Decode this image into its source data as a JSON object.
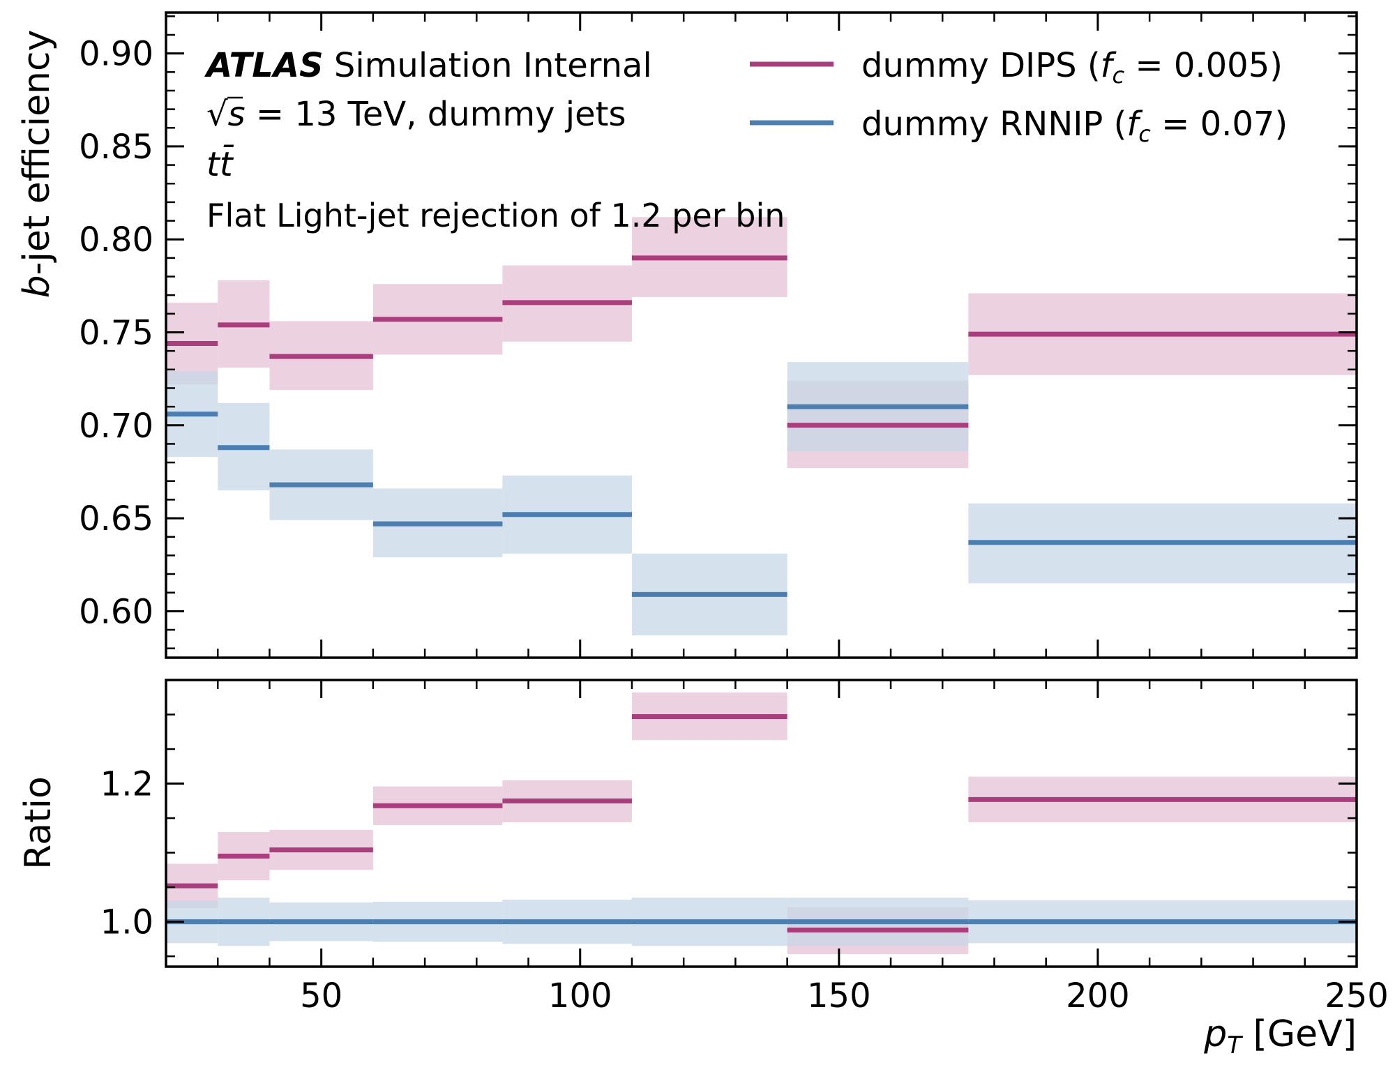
{
  "chart_data": [
    {
      "type": "step",
      "panel": "main",
      "xlim": [
        20,
        250
      ],
      "ylim": [
        0.575,
        0.922
      ],
      "ylabel_prefix": "b",
      "ylabel_rest": "-jet efficiency",
      "yticks": [
        0.6,
        0.65,
        0.7,
        0.75,
        0.8,
        0.85,
        0.9
      ],
      "ytick_labels": [
        "0.60",
        "0.65",
        "0.70",
        "0.75",
        "0.80",
        "0.85",
        "0.90"
      ],
      "bin_edges": [
        20,
        30,
        40,
        60,
        85,
        110,
        140,
        175,
        250
      ],
      "series": [
        {
          "name": "dummy DIPS (f_c = 0.005)",
          "color": "#a83e7c",
          "band_color": "#e6c2d5",
          "values": [
            0.744,
            0.754,
            0.737,
            0.757,
            0.766,
            0.79,
            0.7,
            0.749
          ],
          "band_lo": [
            0.722,
            0.731,
            0.719,
            0.738,
            0.745,
            0.769,
            0.677,
            0.727
          ],
          "band_hi": [
            0.766,
            0.778,
            0.756,
            0.776,
            0.786,
            0.812,
            0.724,
            0.771
          ]
        },
        {
          "name": "dummy RNNIP (f_c = 0.07)",
          "color": "#4d7eb0",
          "band_color": "#c7d7e6",
          "values": [
            0.706,
            0.688,
            0.668,
            0.647,
            0.652,
            0.609,
            0.71,
            0.637
          ],
          "band_lo": [
            0.683,
            0.665,
            0.649,
            0.629,
            0.631,
            0.587,
            0.686,
            0.615
          ],
          "band_hi": [
            0.729,
            0.712,
            0.687,
            0.666,
            0.673,
            0.631,
            0.734,
            0.658
          ]
        }
      ]
    },
    {
      "type": "step",
      "panel": "ratio",
      "xlim": [
        20,
        250
      ],
      "ylim": [
        0.935,
        1.35
      ],
      "ylabel": "Ratio",
      "xlabel_var": "p",
      "xlabel_sub": "T",
      "xlabel_unit": " [GeV]",
      "xticks": [
        50,
        100,
        150,
        200,
        250
      ],
      "xtick_labels": [
        "50",
        "100",
        "150",
        "200",
        "250"
      ],
      "yticks": [
        1.0,
        1.2
      ],
      "ytick_labels": [
        "1.0",
        "1.2"
      ],
      "bin_edges": [
        20,
        30,
        40,
        60,
        85,
        110,
        140,
        175,
        250
      ],
      "series": [
        {
          "name": "dummy DIPS (f_c = 0.005)",
          "color": "#a83e7c",
          "band_color": "#e6c2d5",
          "values": [
            1.052,
            1.095,
            1.104,
            1.168,
            1.175,
            1.297,
            0.988,
            1.177
          ],
          "band_lo": [
            1.02,
            1.06,
            1.075,
            1.14,
            1.144,
            1.263,
            0.953,
            1.144
          ],
          "band_hi": [
            1.084,
            1.13,
            1.133,
            1.196,
            1.205,
            1.332,
            1.021,
            1.21
          ]
        },
        {
          "name": "dummy RNNIP (f_c = 0.07)",
          "color": "#4d7eb0",
          "band_color": "#c7d7e6",
          "values": [
            1.0,
            1.0,
            1.0,
            1.0,
            1.0,
            1.0,
            1.0,
            1.0
          ],
          "band_lo": [
            0.969,
            0.965,
            0.972,
            0.971,
            0.968,
            0.965,
            0.965,
            0.969
          ],
          "band_hi": [
            1.031,
            1.035,
            1.028,
            1.029,
            1.032,
            1.035,
            1.035,
            1.031
          ]
        }
      ]
    }
  ],
  "annotations": {
    "atlas": "ATLAS",
    "atlas_rest": " Simulation Internal",
    "energy_sqrt": "√",
    "energy_s": "s",
    "energy_rest": " = 13 TeV, dummy jets",
    "process": "tt̄",
    "rejection": "Flat Light-jet rejection of 1.2 per bin"
  },
  "legend": {
    "placement": "top-right",
    "entries": [
      {
        "label_pre": "dummy DIPS (",
        "label_f": "f",
        "label_c": "c",
        "label_post": " = 0.005)",
        "color": "#a83e7c"
      },
      {
        "label_pre": "dummy RNNIP (",
        "label_f": "f",
        "label_c": "c",
        "label_post": " = 0.07)",
        "color": "#4d7eb0"
      }
    ]
  }
}
